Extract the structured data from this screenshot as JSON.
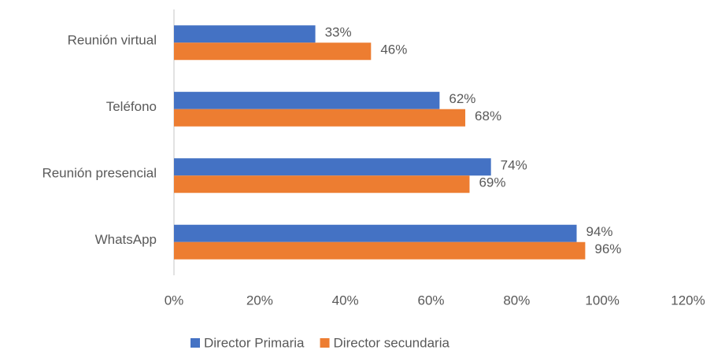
{
  "chart_data": {
    "type": "bar",
    "orientation": "horizontal",
    "categories": [
      "Reunión virtual",
      "Teléfono",
      "Reunión presencial",
      "WhatsApp"
    ],
    "series": [
      {
        "name": "Director Primaria",
        "color": "#4472c4",
        "values": [
          33,
          62,
          74,
          94
        ],
        "value_labels": [
          "33%",
          "62%",
          "74%",
          "94%"
        ]
      },
      {
        "name": "Director secundaria",
        "color": "#ed7d31",
        "values": [
          46,
          68,
          69,
          96
        ],
        "value_labels": [
          "46%",
          "68%",
          "69%",
          "96%"
        ]
      }
    ],
    "xlim": [
      0,
      120
    ],
    "xticks": [
      {
        "value": 0,
        "label": "0%"
      },
      {
        "value": 20,
        "label": "20%"
      },
      {
        "value": 40,
        "label": "40%"
      },
      {
        "value": 60,
        "label": "60%"
      },
      {
        "value": 80,
        "label": "80%"
      },
      {
        "value": 100,
        "label": "100%"
      },
      {
        "value": 120,
        "label": "120%"
      }
    ],
    "grid": false,
    "legend": "bottom"
  }
}
